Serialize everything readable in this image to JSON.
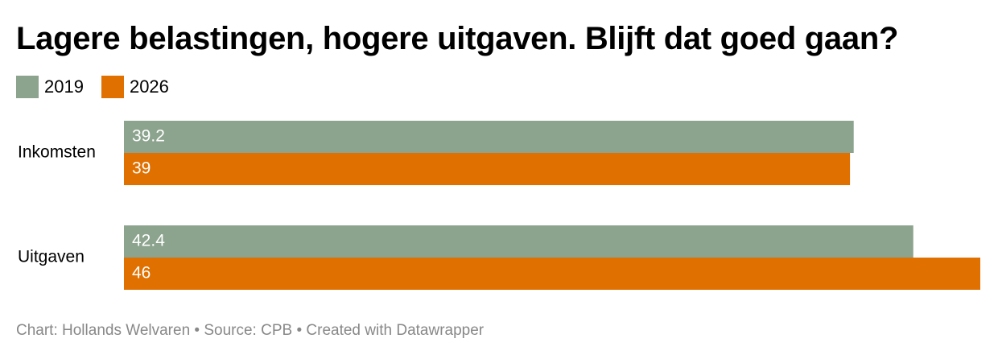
{
  "title": "Lagere belastingen, hogere uitgaven. Blijft dat goed gaan?",
  "footer": {
    "chart_credit": "Chart: Hollands Welvaren",
    "separator": "•",
    "source": "Source: CPB",
    "tool": "Created with Datawrapper"
  },
  "chart_data": {
    "type": "bar",
    "orientation": "horizontal",
    "title": "Lagere belastingen, hogere uitgaven. Blijft dat goed gaan?",
    "xlabel": "",
    "ylabel": "",
    "categories": [
      "Inkomsten",
      "Uitgaven"
    ],
    "series": [
      {
        "name": "2019",
        "color": "#8ca38e",
        "values": [
          39.2,
          42.4
        ]
      },
      {
        "name": "2026",
        "color": "#e07000",
        "values": [
          39,
          46
        ]
      }
    ],
    "xlim": [
      0,
      46
    ],
    "grid": false,
    "legend_position": "top-left"
  }
}
